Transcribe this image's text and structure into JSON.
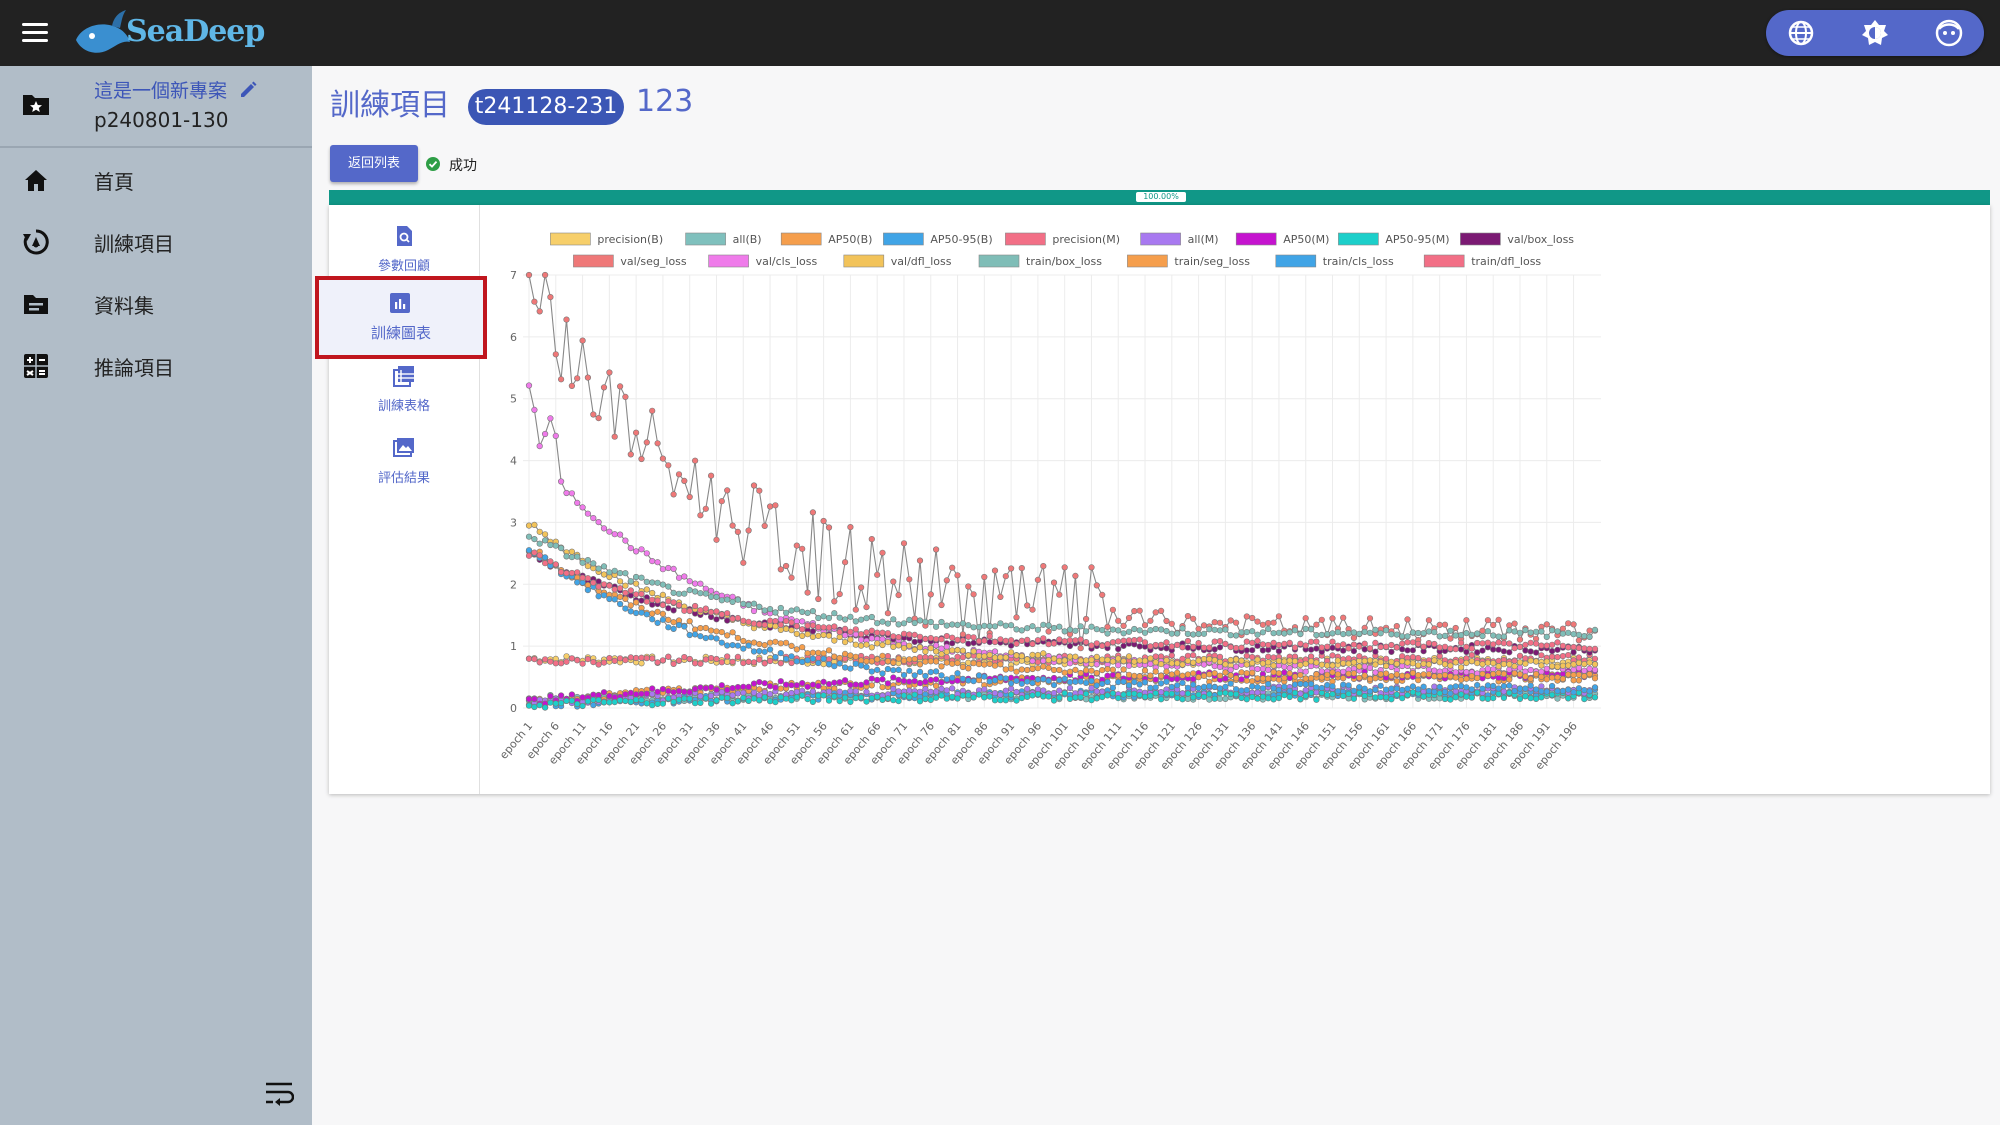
{
  "app": {
    "logo_text": "SeaDeep"
  },
  "header": {
    "tools": [
      "globe-icon",
      "brightness-icon",
      "face-icon"
    ]
  },
  "sidebar": {
    "project_name": "這是一個新專案",
    "project_id": "p240801-130",
    "items": [
      {
        "label": "首頁",
        "icon": "home-icon"
      },
      {
        "label": "訓練項目",
        "icon": "training-icon"
      },
      {
        "label": "資料集",
        "icon": "dataset-icon"
      },
      {
        "label": "推論項目",
        "icon": "inference-icon"
      }
    ]
  },
  "page": {
    "title": "訓練項目",
    "run_id": "t241128-231",
    "run_number": "123",
    "back_label": "返回列表",
    "status_text": "成功",
    "progress_label": "100.00%",
    "progress_value": 1.0
  },
  "tabs": [
    {
      "label": "參數回顧",
      "icon": "param-review-icon"
    },
    {
      "label": "訓練圖表",
      "icon": "chart-icon",
      "selected": true
    },
    {
      "label": "訓練表格",
      "icon": "table-icon"
    },
    {
      "label": "評估結果",
      "icon": "image-result-icon"
    }
  ],
  "chart_data": {
    "type": "line",
    "legend_placement": "top",
    "grid": true,
    "ylim": [
      0,
      7
    ],
    "y_ticks": [
      0,
      1,
      2,
      3,
      4,
      5,
      6,
      7
    ],
    "x_tick_labels": [
      "epoch 1",
      "epoch 6",
      "epoch 11",
      "epoch 16",
      "epoch 21",
      "epoch 26",
      "epoch 31",
      "epoch 36",
      "epoch 41",
      "epoch 46",
      "epoch 51",
      "epoch 56",
      "epoch 61",
      "epoch 66",
      "epoch 71",
      "epoch 76",
      "epoch 81",
      "epoch 86",
      "epoch 91",
      "epoch 96",
      "epoch 101",
      "epoch 106",
      "epoch 111",
      "epoch 116",
      "epoch 121",
      "epoch 126",
      "epoch 131",
      "epoch 136",
      "epoch 141",
      "epoch 146",
      "epoch 151",
      "epoch 156",
      "epoch 161",
      "epoch 166",
      "epoch 171",
      "epoch 176",
      "epoch 181",
      "epoch 186",
      "epoch 191",
      "epoch 196"
    ],
    "epochs": 200,
    "series": [
      {
        "name": "precision(B)",
        "color": "#f7cf6a",
        "start": 0.8,
        "end": 0.75
      },
      {
        "name": "all(B)",
        "color": "#7fc0bd",
        "start": 0.15,
        "end": 0.2
      },
      {
        "name": "AP50(B)",
        "color": "#f59e4c",
        "start": 0.1,
        "end": 0.5
      },
      {
        "name": "AP50-95(B)",
        "color": "#40a4e6",
        "start": 0.05,
        "end": 0.25
      },
      {
        "name": "precision(M)",
        "color": "#f26f86",
        "start": 0.75,
        "end": 0.8
      },
      {
        "name": "all(M)",
        "color": "#a879f0",
        "start": 0.1,
        "end": 0.3
      },
      {
        "name": "AP50(M)",
        "color": "#c513cf",
        "start": 0.1,
        "end": 0.55
      },
      {
        "name": "AP50-95(M)",
        "color": "#1ccfca",
        "start": 0.05,
        "end": 0.2
      },
      {
        "name": "val/box_loss",
        "color": "#7b1a73",
        "start": 2.5,
        "end": 0.95
      },
      {
        "name": "val/seg_loss",
        "color": "#ef7878",
        "start": 6.8,
        "end": 1.2
      },
      {
        "name": "val/cls_loss",
        "color": "#ef7bea",
        "start": 4.2,
        "end": 0.6
      },
      {
        "name": "val/dfl_loss",
        "color": "#f2c35a",
        "start": 3.0,
        "end": 0.7
      },
      {
        "name": "train/box_loss",
        "color": "#7fbdb7",
        "start": 2.8,
        "end": 1.2
      },
      {
        "name": "train/seg_loss",
        "color": "#f59e4c",
        "start": 2.6,
        "end": 0.5
      },
      {
        "name": "train/cls_loss",
        "color": "#40a4e6",
        "start": 2.6,
        "end": 0.3
      },
      {
        "name": "train/dfl_loss",
        "color": "#f26f86",
        "start": 2.5,
        "end": 1.0
      }
    ]
  }
}
